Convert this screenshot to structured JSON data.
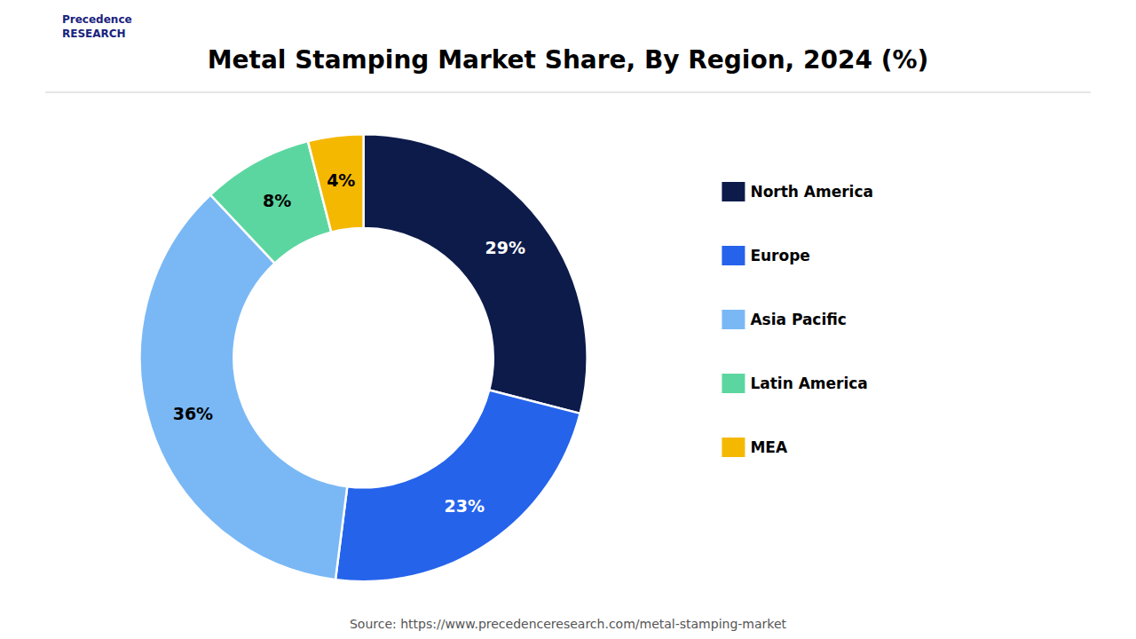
{
  "chart_data": {
    "type": "pie",
    "title": "Metal Stamping Market Share, By Region, 2024 (%)",
    "annotations": [
      "Precedence\nRESEARCH",
      "Source: https://www.precedenceresearch.com/metal-stamping-market"
    ],
    "categories": [
      "North America",
      "Europe",
      "Asia Pacific",
      "Latin America",
      "MEA"
    ],
    "values": [
      29,
      23,
      36,
      8,
      4
    ],
    "value_labels": [
      "29%",
      "23%",
      "36%",
      "8%",
      "4%"
    ],
    "colors": [
      "#0d1b4b",
      "#2563eb",
      "#7ab8f5",
      "#5cd6a0",
      "#f5b800"
    ],
    "data_labels": true,
    "legend": "right"
  }
}
